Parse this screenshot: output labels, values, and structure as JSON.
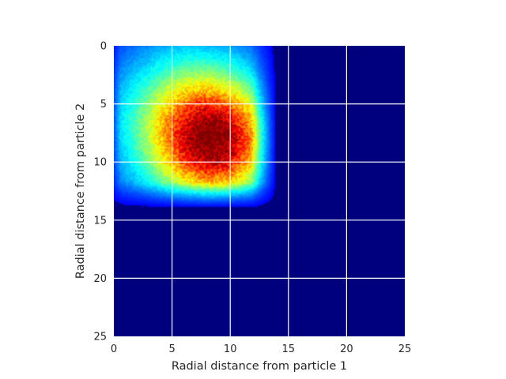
{
  "chart_data": {
    "type": "heatmap",
    "title": "",
    "xlabel": "Radial distance from particle 1",
    "ylabel": "Radial distance from particle 2",
    "xlim": [
      0,
      25
    ],
    "ylim": [
      25,
      0
    ],
    "y_axis_inverted": true,
    "xticks": [
      "0",
      "5",
      "10",
      "15",
      "20",
      "25"
    ],
    "yticks": [
      "0",
      "5",
      "10",
      "15",
      "20",
      "25"
    ],
    "grid": true,
    "grid_color": "#ffffff",
    "colormap": "jet",
    "background_color": "#00007f",
    "density_peak": {
      "x": 9,
      "y": 8.5
    },
    "density_extent": {
      "x": [
        0,
        14
      ],
      "y": [
        0,
        14
      ]
    },
    "colorbar": false,
    "legend": "none"
  }
}
